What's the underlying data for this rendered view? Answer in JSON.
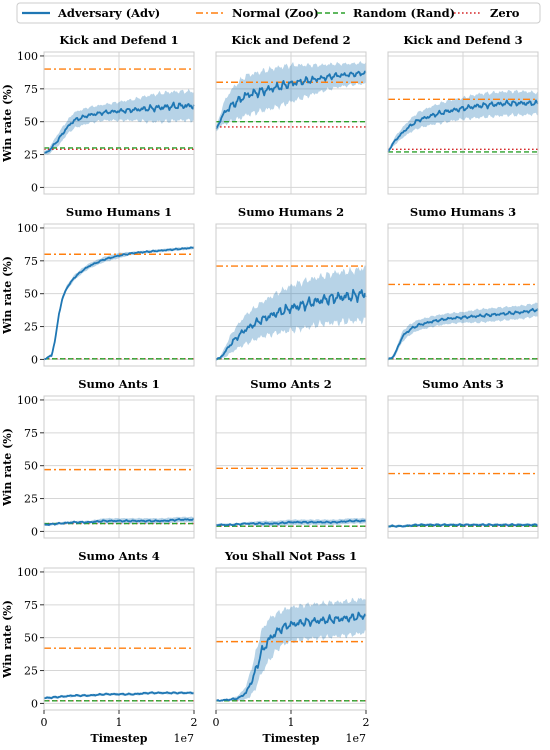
{
  "legend": {
    "entries": [
      {
        "label": "Adversary (Adv)",
        "color": "#1f77b4",
        "style": "solid"
      },
      {
        "label": "Normal (Zoo)",
        "color": "#ff7f0e",
        "style": "dashdot"
      },
      {
        "label": "Random (Rand)",
        "color": "#2ca02c",
        "style": "dashed"
      },
      {
        "label": "Zero",
        "color": "#d62728",
        "style": "dotted"
      }
    ]
  },
  "chart_data": {
    "type": "line",
    "layout": "grid 4x3",
    "xlabel": "Timestep",
    "x_multiplier": "1e7",
    "ylabel": "Win rate (%)",
    "xlim": [
      0,
      2
    ],
    "ylim": [
      0,
      100
    ],
    "xticks": [
      "0",
      "1",
      "2"
    ],
    "yticks": [
      "0",
      "25",
      "50",
      "75",
      "100"
    ],
    "grid": true,
    "legend_placement": "top",
    "series_names": [
      "Adversary (Adv)",
      "Normal (Zoo)",
      "Random (Rand)",
      "Zero"
    ],
    "panels": [
      {
        "title": "Kick and Defend 1",
        "adv_x": [
          0,
          0.05,
          0.1,
          0.2,
          0.3,
          0.4,
          0.6,
          0.8,
          1.0,
          1.2,
          1.4,
          1.6,
          1.8,
          2.0
        ],
        "adv_y": [
          26,
          27,
          30,
          37,
          45,
          51,
          55,
          57,
          58,
          59,
          60,
          61,
          62,
          62
        ],
        "band_halfwidth": [
          1,
          2,
          3,
          5,
          5,
          6,
          6,
          6,
          7,
          8,
          10,
          11,
          11,
          11
        ],
        "zoo": 90,
        "rand": 30,
        "zero": 29
      },
      {
        "title": "Kick and Defend 2",
        "adv_x": [
          0,
          0.05,
          0.1,
          0.2,
          0.3,
          0.4,
          0.6,
          0.8,
          1.0,
          1.2,
          1.4,
          1.6,
          1.8,
          2.0
        ],
        "adv_y": [
          44,
          50,
          56,
          62,
          66,
          70,
          73,
          76,
          79,
          81,
          83,
          85,
          86,
          87
        ],
        "band_halfwidth": [
          2,
          4,
          8,
          12,
          14,
          15,
          15,
          15,
          14,
          12,
          10,
          9,
          8,
          8
        ],
        "zoo": 80,
        "rand": 50,
        "zero": 46
      },
      {
        "title": "Kick and Defend 3",
        "adv_x": [
          0,
          0.05,
          0.1,
          0.2,
          0.3,
          0.4,
          0.6,
          0.8,
          1.0,
          1.2,
          1.4,
          1.6,
          1.8,
          2.0
        ],
        "adv_y": [
          27,
          32,
          36,
          42,
          47,
          51,
          55,
          58,
          60,
          62,
          63,
          64,
          64,
          64
        ],
        "band_halfwidth": [
          1,
          2,
          3,
          4,
          5,
          6,
          7,
          8,
          8,
          9,
          9,
          9,
          9,
          8
        ],
        "zoo": 67,
        "rand": 27,
        "zero": 29
      },
      {
        "title": "Sumo Humans 1",
        "adv_x": [
          0,
          0.1,
          0.15,
          0.2,
          0.25,
          0.3,
          0.4,
          0.5,
          0.6,
          0.8,
          1.0,
          1.2,
          1.4,
          1.6,
          1.8,
          2.0
        ],
        "adv_y": [
          0,
          3,
          15,
          35,
          47,
          54,
          62,
          67,
          71,
          76,
          79,
          81,
          82,
          83,
          84,
          85
        ],
        "band_halfwidth": [
          0,
          1,
          2,
          2,
          2,
          2,
          2,
          2,
          2,
          2,
          2,
          1,
          1,
          1,
          1,
          1
        ],
        "zoo": 80,
        "rand": 0.5,
        "zero": 0.5
      },
      {
        "title": "Sumo Humans 2",
        "adv_x": [
          0,
          0.05,
          0.1,
          0.15,
          0.2,
          0.3,
          0.4,
          0.6,
          0.8,
          1.0,
          1.2,
          1.4,
          1.6,
          1.8,
          2.0
        ],
        "adv_y": [
          0,
          1,
          4,
          8,
          12,
          18,
          23,
          30,
          35,
          39,
          42,
          45,
          47,
          48,
          50
        ],
        "band_halfwidth": [
          0,
          1,
          3,
          5,
          7,
          9,
          11,
          13,
          15,
          17,
          18,
          18,
          19,
          19,
          20
        ],
        "zoo": 71,
        "rand": 0.5,
        "zero": 0.5
      },
      {
        "title": "Sumo Humans 3",
        "adv_x": [
          0,
          0.05,
          0.1,
          0.15,
          0.2,
          0.3,
          0.4,
          0.6,
          0.8,
          1.0,
          1.2,
          1.4,
          1.6,
          1.8,
          2.0
        ],
        "adv_y": [
          0,
          1,
          5,
          12,
          18,
          23,
          26,
          29,
          31,
          32,
          33,
          34,
          35,
          36,
          38
        ],
        "band_halfwidth": [
          0,
          1,
          2,
          3,
          4,
          4,
          4,
          4,
          4,
          4,
          5,
          5,
          5,
          5,
          5
        ],
        "zoo": 57,
        "rand": 0.5,
        "zero": 0.5
      },
      {
        "title": "Sumo Ants 1",
        "adv_x": [
          0,
          0.2,
          0.4,
          0.6,
          0.8,
          1.0,
          1.2,
          1.4,
          1.6,
          1.8,
          2.0
        ],
        "adv_y": [
          5,
          6,
          7,
          7,
          8,
          8,
          8,
          8,
          8,
          9,
          9
        ],
        "band_halfwidth": [
          1,
          1,
          1,
          1,
          2,
          2,
          2,
          2,
          2,
          2,
          2
        ],
        "zoo": 47,
        "rand": 6,
        "zero": 6
      },
      {
        "title": "Sumo Ants 2",
        "adv_x": [
          0,
          0.2,
          0.4,
          0.6,
          0.8,
          1.0,
          1.2,
          1.4,
          1.6,
          1.8,
          2.0
        ],
        "adv_y": [
          5,
          5,
          6,
          6,
          6,
          7,
          7,
          7,
          7,
          8,
          8
        ],
        "band_halfwidth": [
          1,
          1,
          1,
          2,
          2,
          2,
          2,
          2,
          2,
          2,
          2
        ],
        "zoo": 48,
        "rand": 4,
        "zero": 4
      },
      {
        "title": "Sumo Ants 3",
        "adv_x": [
          0,
          0.2,
          0.4,
          0.6,
          0.8,
          1.0,
          1.2,
          1.4,
          1.6,
          1.8,
          2.0
        ],
        "adv_y": [
          4,
          4,
          5,
          5,
          5,
          5,
          5,
          5,
          5,
          5,
          5
        ],
        "band_halfwidth": [
          1,
          1,
          1,
          1,
          1,
          1,
          1,
          1,
          1,
          1,
          1
        ],
        "zoo": 44,
        "rand": 4,
        "zero": 4
      },
      {
        "title": "Sumo Ants 4",
        "adv_x": [
          0,
          0.2,
          0.4,
          0.6,
          0.8,
          1.0,
          1.2,
          1.4,
          1.6,
          1.8,
          2.0
        ],
        "adv_y": [
          4,
          5,
          6,
          6,
          7,
          7,
          7,
          8,
          8,
          8,
          8
        ],
        "band_halfwidth": [
          1,
          1,
          1,
          1,
          1,
          1,
          1,
          1,
          1,
          1,
          1
        ],
        "zoo": 42,
        "rand": 2,
        "zero": 2
      },
      {
        "title": "You Shall Not Pass 1",
        "adv_x": [
          0,
          0.2,
          0.3,
          0.4,
          0.5,
          0.6,
          0.7,
          0.8,
          0.9,
          1.0,
          1.2,
          1.4,
          1.6,
          1.8,
          2.0
        ],
        "adv_y": [
          2,
          3,
          4,
          8,
          20,
          38,
          48,
          54,
          58,
          60,
          62,
          63,
          64,
          65,
          67
        ],
        "band_halfwidth": [
          0,
          1,
          2,
          5,
          12,
          16,
          16,
          14,
          13,
          13,
          13,
          13,
          13,
          13,
          13
        ],
        "zoo": 47,
        "rand": 2,
        "zero": 2
      }
    ]
  }
}
